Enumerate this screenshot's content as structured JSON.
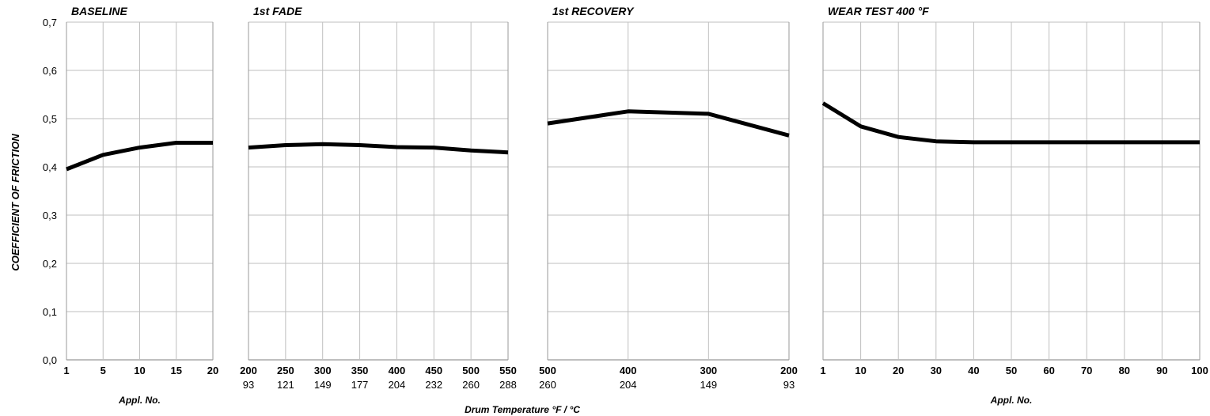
{
  "chart_data": {
    "type": "line",
    "ylabel": "COEFFICIENT OF FRICTION",
    "ylim": [
      0,
      0.7
    ],
    "yticks": [
      "0,0",
      "0,1",
      "0,2",
      "0,3",
      "0,4",
      "0,5",
      "0,6",
      "0,7"
    ],
    "grid": true,
    "line_color": "#000000",
    "panels": [
      {
        "title": "BASELINE",
        "xlabel": "Appl. No.",
        "ticks_primary": [
          "1",
          "5",
          "10",
          "15",
          "20"
        ],
        "ticks_secondary": [],
        "values": [
          0.395,
          0.425,
          0.44,
          0.45,
          0.45
        ]
      },
      {
        "title": "1st FADE",
        "xlabel": "",
        "ticks_primary": [
          "200",
          "250",
          "300",
          "350",
          "400",
          "450",
          "500",
          "550"
        ],
        "ticks_secondary": [
          "93",
          "121",
          "149",
          "177",
          "204",
          "232",
          "260",
          "288"
        ],
        "values": [
          0.44,
          0.445,
          0.447,
          0.445,
          0.441,
          0.44,
          0.434,
          0.43
        ]
      },
      {
        "title": "1st  RECOVERY",
        "xlabel": "",
        "ticks_primary": [
          "500",
          "400",
          "300",
          "200"
        ],
        "ticks_secondary": [
          "260",
          "204",
          "149",
          "93"
        ],
        "values": [
          0.49,
          0.515,
          0.51,
          0.465
        ]
      },
      {
        "title": "WEAR TEST 400 °F",
        "xlabel": "Appl. No.",
        "ticks_primary": [
          "1",
          "10",
          "20",
          "30",
          "40",
          "50",
          "60",
          "70",
          "80",
          "90",
          "100"
        ],
        "ticks_secondary": [],
        "values": [
          0.532,
          0.484,
          0.462,
          0.453,
          0.451,
          0.451,
          0.451,
          0.451,
          0.451,
          0.451,
          0.451
        ]
      }
    ],
    "shared_xlabel": "Drum Temperature °F / °C"
  }
}
